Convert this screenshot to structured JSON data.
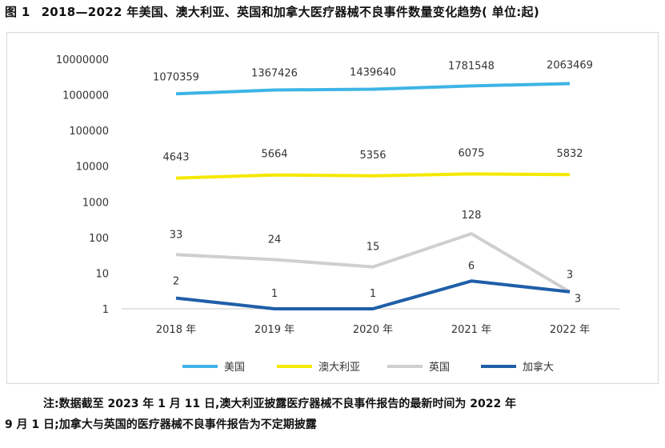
{
  "title": {
    "figure_no": "图 1",
    "text": "2018—2022 年美国、澳大利亚、英国和加拿大医疗器械不良事件数量变化趋势( 单位:起)"
  },
  "chart_data": {
    "type": "line",
    "yscale": "log",
    "ylim": [
      1,
      10000000
    ],
    "y_ticks": [
      "10000000",
      "1000000",
      "100000",
      "10000",
      "1000",
      "100",
      "10",
      "1"
    ],
    "categories": [
      "2018 年",
      "2019 年",
      "2020 年",
      "2021 年",
      "2022 年"
    ],
    "series": [
      {
        "name": "美国",
        "color": "#3eb4e6",
        "values": [
          1070359,
          1367426,
          1439640,
          1781548,
          2063469
        ]
      },
      {
        "name": "澳大利亚",
        "color": "#f5e800",
        "values": [
          4643,
          5664,
          5356,
          6075,
          5832
        ]
      },
      {
        "name": "英国",
        "color": "#cfcfcf",
        "values": [
          33,
          24,
          15,
          128,
          3
        ]
      },
      {
        "name": "加拿大",
        "color": "#1f5ea8",
        "values": [
          2,
          1,
          1,
          6,
          3
        ]
      }
    ]
  },
  "note": {
    "line1": "注:数据截至 2023 年 1 月 11 日,澳大利亚披露医疗器械不良事件报告的最新时间为 2022 年",
    "line2": "9 月 1 日;加拿大与英国的医疗器械不良事件报告为不定期披露"
  }
}
